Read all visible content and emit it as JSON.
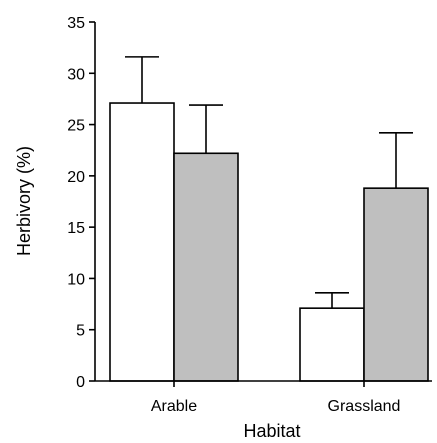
{
  "chart_data": {
    "type": "bar",
    "xlabel": "Habitat",
    "ylabel": "Herbivory (%)",
    "categories": [
      "Arable",
      "Grassland"
    ],
    "ylim": [
      0,
      35
    ],
    "yticks": [
      "0",
      "5",
      "10",
      "15",
      "20",
      "25",
      "30",
      "35"
    ],
    "grid": false,
    "legend": "none",
    "series": [
      {
        "values": [
          27.1,
          7.1
        ],
        "errors": [
          4.5,
          1.5
        ],
        "color": "#ffffff"
      },
      {
        "values": [
          22.2,
          18.8
        ],
        "errors": [
          4.7,
          5.4
        ],
        "color": "#bfbfbf"
      }
    ]
  }
}
